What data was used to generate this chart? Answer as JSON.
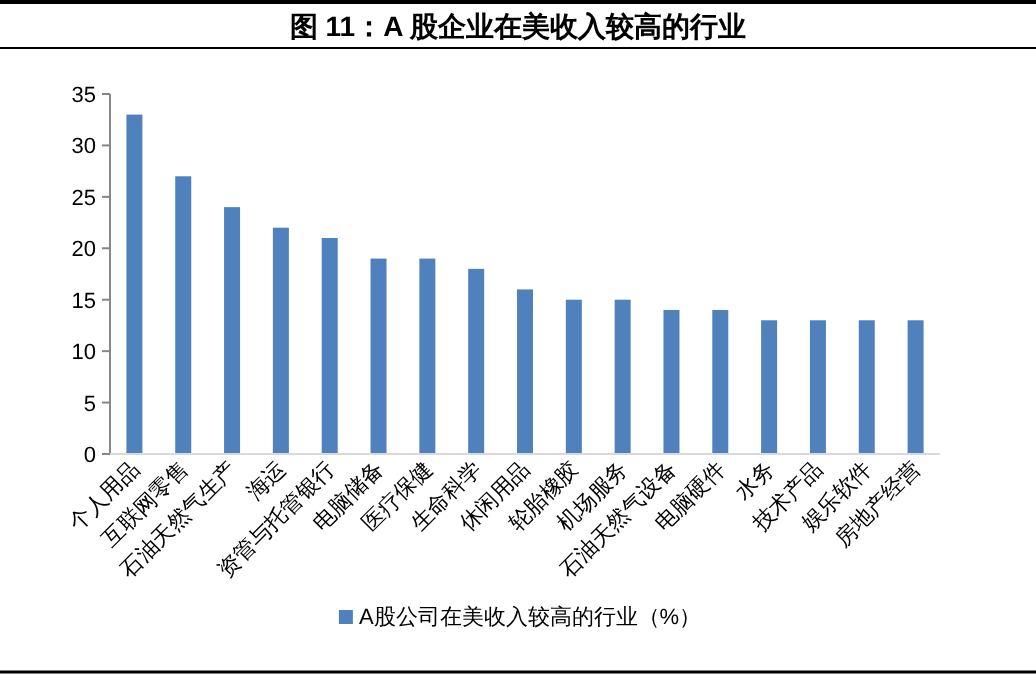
{
  "chart_data": {
    "type": "bar",
    "title": "图 11：A 股企业在美收入较高的行业",
    "categories": [
      "个人用品",
      "互联网零售",
      "石油天然气生产",
      "海运",
      "资管与托管银行",
      "电脑储备",
      "医疗保健",
      "生命科学",
      "休闲用品",
      "轮胎橡胶",
      "机场服务",
      "石油天然气设备",
      "电脑硬件",
      "水务",
      "技术产品",
      "娱乐软件",
      "房地产经营"
    ],
    "series": [
      {
        "name": "A股公司在美收入较高的行业（%）",
        "color": "#4f81bd",
        "values": [
          33,
          27,
          24,
          22,
          21,
          19,
          19,
          18,
          16,
          15,
          15,
          14,
          14,
          13,
          13,
          13,
          13
        ]
      }
    ],
    "ylim": [
      0,
      35
    ],
    "yticks": [
      0,
      5,
      10,
      15,
      20,
      25,
      30,
      35
    ],
    "grid": false,
    "legend": "bottom"
  }
}
